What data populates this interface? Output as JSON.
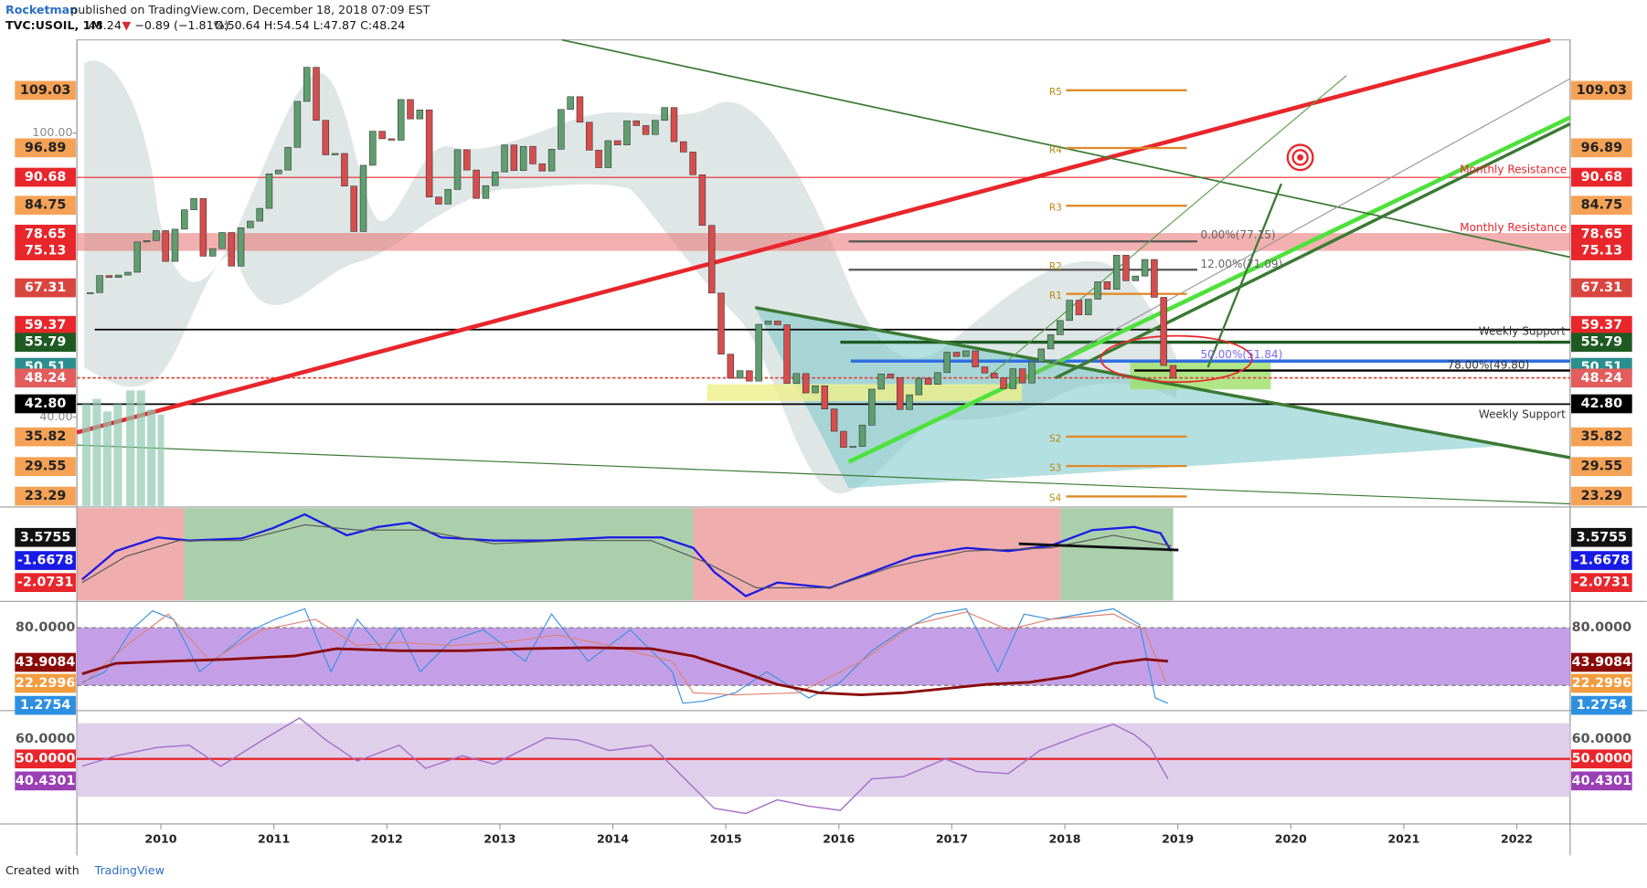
{
  "header": {
    "author": "Rocketman",
    "published": "published on TradingView.com, December 18, 2018 07:09 EST",
    "symbol": "TVC:USOIL, 1M",
    "last": "48.24",
    "arrow": "▼",
    "change": "−0.89 (−1.81%)",
    "ohlc": "O:50.64 H:54.54 L:47.87 C:48.24"
  },
  "chart_data": {
    "type": "candlestick",
    "up_color": "#5f9e6e",
    "down_color": "#d64d4d",
    "closes": [
      66.3,
      69.9,
      69.5,
      70.0,
      70.6,
      77.0,
      77.3,
      79.4,
      72.9,
      79.7,
      83.8,
      86.2,
      74.0,
      75.6,
      79.0,
      71.9,
      80.0,
      81.4,
      84.1,
      91.4,
      92.2,
      97.0,
      106.7,
      113.9,
      102.7,
      95.4,
      95.7,
      88.8,
      79.2,
      93.2,
      100.4,
      98.8,
      98.5,
      107.1,
      103.0,
      104.9,
      86.5,
      85.0,
      88.1,
      96.5,
      92.2,
      86.2,
      88.9,
      91.8,
      97.5,
      92.1,
      97.2,
      93.5,
      92.0,
      96.6,
      105.0,
      107.7,
      102.3,
      96.4,
      92.7,
      98.4,
      97.5,
      102.6,
      101.6,
      99.7,
      102.7,
      105.4,
      98.2,
      96.0,
      91.2,
      80.5,
      66.2,
      53.3,
      48.2,
      49.8,
      47.6,
      59.6,
      60.3,
      59.5,
      47.1,
      49.2,
      45.1,
      46.6,
      41.7,
      37.0,
      33.6,
      33.8,
      38.3,
      45.9,
      49.1,
      48.3,
      41.6,
      44.7,
      48.2,
      46.9,
      49.4,
      53.7,
      52.8,
      54.0,
      50.6,
      49.3,
      48.3,
      46.0,
      50.2,
      47.2,
      51.7,
      54.4,
      57.4,
      60.4,
      64.7,
      61.6,
      64.9,
      68.6,
      67.0,
      74.2,
      68.8,
      69.8,
      73.3,
      65.3,
      50.9,
      48.24
    ],
    "ylim": [
      21,
      119.7
    ],
    "yticks": [
      {
        "value": 100,
        "label": "100.00"
      },
      {
        "value": 40,
        "label": "40.00"
      }
    ],
    "price_labels": [
      {
        "value": 109.03,
        "label": "109.03",
        "bg": "#f5a256",
        "fg": "#222"
      },
      {
        "value": 96.89,
        "label": "96.89",
        "bg": "#f5a256",
        "fg": "#222"
      },
      {
        "value": 90.68,
        "label": "90.68",
        "bg": "#e8262b",
        "fg": "#fff"
      },
      {
        "value": 84.75,
        "label": "84.75",
        "bg": "#f5a256",
        "fg": "#222"
      },
      {
        "value": 78.65,
        "label": "78.65",
        "bg": "#e8262b",
        "fg": "#fff"
      },
      {
        "value": 75.13,
        "label": "75.13",
        "bg": "#e8262b",
        "fg": "#fff"
      },
      {
        "value": 67.31,
        "label": "67.31",
        "bg": "#d9463f",
        "fg": "#fff"
      },
      {
        "value": 59.37,
        "label": "59.37",
        "bg": "#e8262b",
        "fg": "#fff"
      },
      {
        "value": 55.79,
        "label": "55.79",
        "bg": "#1e5a22",
        "fg": "#fff"
      },
      {
        "value": 50.51,
        "label": "50.51",
        "bg": "#2a8f8f",
        "fg": "#fff"
      },
      {
        "value": 48.24,
        "label": "48.24",
        "bg": "#e35d5d",
        "fg": "#fff"
      },
      {
        "value": 42.8,
        "label": "42.80",
        "bg": "#000",
        "fg": "#fff"
      },
      {
        "value": 35.82,
        "label": "35.82",
        "bg": "#f5a256",
        "fg": "#222"
      },
      {
        "value": 29.55,
        "label": "29.55",
        "bg": "#f5a256",
        "fg": "#222"
      },
      {
        "value": 23.29,
        "label": "23.29",
        "bg": "#f5a256",
        "fg": "#222"
      }
    ],
    "xticks": [
      2010,
      2011,
      2012,
      2013,
      2014,
      2015,
      2016,
      2017,
      2018,
      2019,
      2020,
      2021,
      2022
    ],
    "annotations": [
      "Monthly Resistance",
      "Monthly Resistance",
      "Weekly Support",
      "Weekly Support",
      "0.00%(77.15)",
      "12.00%(71.09)",
      "50.00%(51.84)",
      "78.00%(49.80)"
    ],
    "pivots": [
      "R5",
      "R4",
      "R3",
      "R2",
      "R1",
      "S2",
      "S3",
      "S4"
    ]
  },
  "macd": {
    "labels": [
      {
        "value": 3.5755,
        "bg": "#111",
        "fg": "#fff"
      },
      {
        "value": -1.6678,
        "bg": "#1a1ae6",
        "fg": "#fff"
      },
      {
        "value": -2.0731,
        "bg": "#e8262b",
        "fg": "#fff"
      }
    ]
  },
  "stoch": {
    "labels": [
      {
        "value": 80,
        "label": "80.0000"
      },
      {
        "value": 43.9084,
        "label": "43.9084",
        "bg": "#8b0a0a",
        "fg": "#fff"
      },
      {
        "value": 22.2996,
        "label": "22.2996",
        "bg": "#f39c3f",
        "fg": "#fff"
      },
      {
        "value": 1.2754,
        "label": "1.2754",
        "bg": "#2e8fe0",
        "fg": "#fff"
      }
    ]
  },
  "rsi": {
    "labels": [
      {
        "value": 60,
        "label": "60.0000"
      },
      {
        "value": 50,
        "label": "50.0000",
        "bg": "#e8262b",
        "fg": "#fff"
      },
      {
        "value": 40.4301,
        "label": "40.4301",
        "bg": "#9b3fb5",
        "fg": "#fff"
      }
    ]
  },
  "footer": {
    "created": "Created with",
    "brand": "TradingView"
  }
}
